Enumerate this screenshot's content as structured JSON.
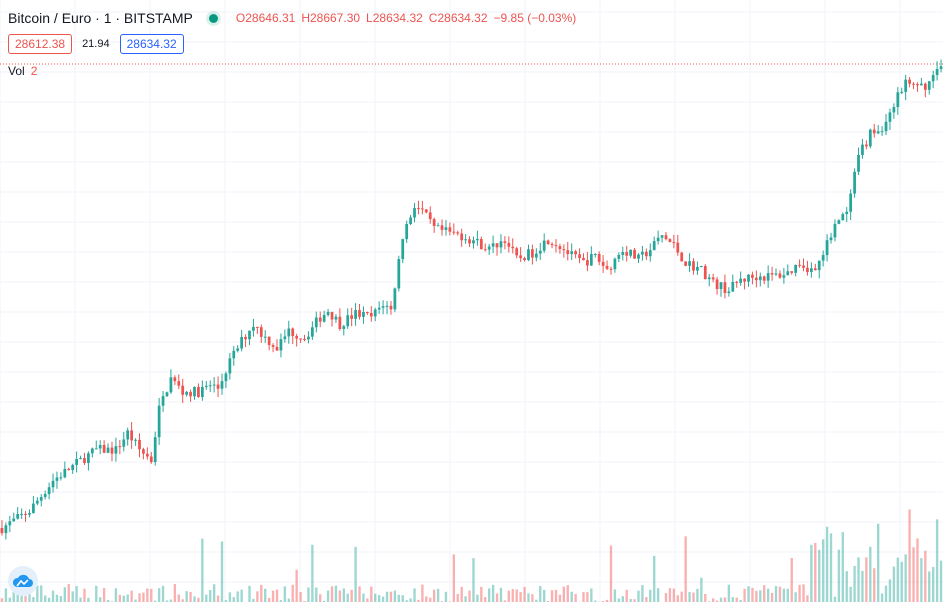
{
  "header": {
    "symbol_title": "Bitcoin / Euro · 1 · BITSTAMP",
    "market_status_color": "#089981",
    "ohlc": {
      "open_label": "O",
      "open": "28646.31",
      "high_label": "H",
      "high": "28667.30",
      "low_label": "L",
      "low": "28634.32",
      "close_label": "C",
      "close": "28634.32",
      "change": "−9.85 (−0.03%)"
    }
  },
  "quote": {
    "sell": "28612.38",
    "spread": "21.94",
    "buy": "28634.32"
  },
  "volume_legend": {
    "label": "Vol",
    "value": "2"
  },
  "logo": {
    "icon": "tradingview-cloud-icon"
  },
  "colors": {
    "up": "#26a69a",
    "down": "#ef5350",
    "grid": "#f0f3fa",
    "last_price_line": "#ef5350"
  },
  "chart_data": {
    "type": "candlestick",
    "grid": true,
    "candle_count": 240,
    "price_path": [
      [
        0,
        0.0
      ],
      [
        7,
        0.05
      ],
      [
        13,
        0.14
      ],
      [
        19,
        0.19
      ],
      [
        24,
        0.23
      ],
      [
        29,
        0.23
      ],
      [
        32,
        0.28
      ],
      [
        35,
        0.23
      ],
      [
        38,
        0.2
      ],
      [
        40,
        0.35
      ],
      [
        43,
        0.44
      ],
      [
        46,
        0.4
      ],
      [
        50,
        0.4
      ],
      [
        53,
        0.42
      ],
      [
        55,
        0.41
      ],
      [
        58,
        0.49
      ],
      [
        61,
        0.55
      ],
      [
        64,
        0.6
      ],
      [
        67,
        0.56
      ],
      [
        70,
        0.53
      ],
      [
        73,
        0.58
      ],
      [
        77,
        0.56
      ],
      [
        81,
        0.62
      ],
      [
        83,
        0.64
      ],
      [
        86,
        0.6
      ],
      [
        90,
        0.63
      ],
      [
        94,
        0.62
      ],
      [
        97,
        0.66
      ],
      [
        99,
        0.64
      ],
      [
        102,
        0.86
      ],
      [
        105,
        0.95
      ],
      [
        107,
        0.93
      ],
      [
        110,
        0.88
      ],
      [
        113,
        0.87
      ],
      [
        117,
        0.86
      ],
      [
        121,
        0.84
      ],
      [
        124,
        0.82
      ],
      [
        128,
        0.85
      ],
      [
        131,
        0.79
      ],
      [
        135,
        0.81
      ],
      [
        139,
        0.85
      ],
      [
        142,
        0.83
      ],
      [
        145,
        0.8
      ],
      [
        148,
        0.78
      ],
      [
        151,
        0.8
      ],
      [
        154,
        0.76
      ],
      [
        158,
        0.82
      ],
      [
        162,
        0.79
      ],
      [
        165,
        0.82
      ],
      [
        168,
        0.86
      ],
      [
        171,
        0.83
      ],
      [
        174,
        0.78
      ],
      [
        178,
        0.76
      ],
      [
        181,
        0.72
      ],
      [
        185,
        0.7
      ],
      [
        188,
        0.73
      ],
      [
        192,
        0.74
      ],
      [
        196,
        0.74
      ],
      [
        200,
        0.75
      ],
      [
        203,
        0.78
      ],
      [
        206,
        0.76
      ],
      [
        209,
        0.8
      ],
      [
        212,
        0.9
      ],
      [
        215,
        0.92
      ],
      [
        218,
        1.09
      ],
      [
        221,
        1.16
      ],
      [
        224,
        1.17
      ],
      [
        227,
        1.25
      ],
      [
        230,
        1.31
      ],
      [
        233,
        1.29
      ],
      [
        236,
        1.31
      ],
      [
        239,
        1.37
      ]
    ]
  }
}
